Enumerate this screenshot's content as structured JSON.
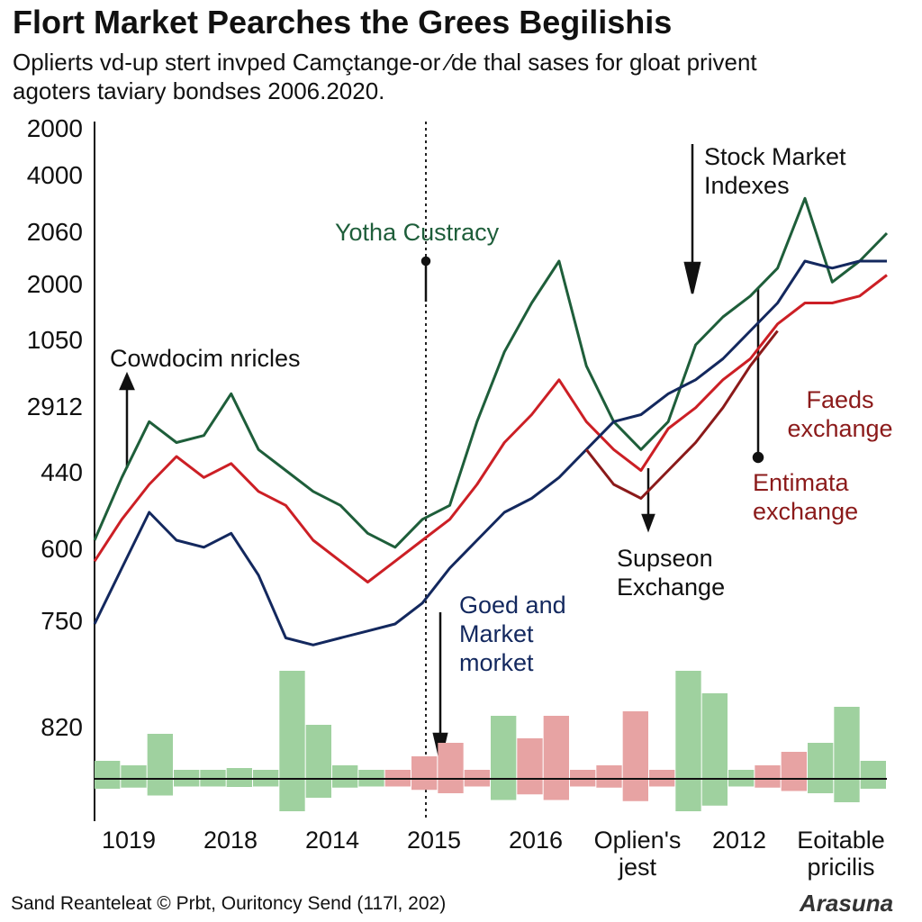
{
  "chart_data": {
    "type": "line",
    "title": "Flort Market Pearches the Grees Begilishis",
    "subtitle": [
      "Oplierts vd-up stert invped Camçtange-or ⁄de thal sases for gloat privent",
      "agoters taviary bondses 2006.2020."
    ],
    "y_labels": [
      "2000",
      "4000",
      "2060",
      "2000",
      "1050",
      "2912",
      "440",
      "600",
      "750",
      "820"
    ],
    "x_labels": [
      "1019",
      "2018",
      "2014",
      "2015",
      "2016",
      "Oplien's jest",
      "2012",
      "Eoitable pricilis"
    ],
    "ylim": [
      0,
      100
    ],
    "series": [
      {
        "color": "#1e5e3a",
        "values": [
          40,
          49,
          57,
          54,
          55,
          61,
          53,
          50,
          47,
          45,
          41,
          39,
          43,
          45,
          57,
          67,
          74,
          80,
          65,
          57,
          53,
          57,
          68,
          72,
          75,
          79,
          89,
          77,
          80,
          84
        ]
      },
      {
        "color": "#cc1f25",
        "values": [
          37,
          43,
          48,
          52,
          49,
          51,
          47,
          45,
          40,
          37,
          34,
          37,
          40,
          43,
          48,
          54,
          58,
          63,
          57,
          53,
          50,
          56,
          59,
          63,
          66,
          71,
          74,
          74,
          75,
          78
        ]
      },
      {
        "color": "#13285e",
        "values": [
          28,
          36,
          44,
          40,
          39,
          41,
          35,
          26,
          25,
          26,
          27,
          28,
          31,
          36,
          40,
          44,
          46,
          49,
          53,
          57,
          58,
          61,
          63,
          66,
          70,
          74,
          80,
          79,
          80,
          80
        ]
      },
      {
        "color": "#8b1a1a",
        "values": [
          null,
          null,
          null,
          null,
          null,
          null,
          null,
          null,
          null,
          null,
          null,
          null,
          null,
          null,
          null,
          null,
          null,
          null,
          53,
          48,
          46,
          50,
          54,
          59,
          65,
          70,
          null,
          null,
          null,
          null
        ]
      }
    ],
    "volume": {
      "ylim": [
        0,
        120
      ],
      "values": [
        20,
        15,
        50,
        10,
        10,
        12,
        10,
        120,
        60,
        15,
        10,
        10,
        25,
        40,
        10,
        70,
        45,
        70,
        10,
        15,
        75,
        10,
        120,
        95,
        10,
        15,
        30,
        40,
        80,
        20
      ],
      "colors": [
        "#9fd19f",
        "#9fd19f",
        "#9fd19f",
        "#9fd19f",
        "#9fd19f",
        "#9fd19f",
        "#9fd19f",
        "#9fd19f",
        "#9fd19f",
        "#9fd19f",
        "#9fd19f",
        "#e7a3a3",
        "#e7a3a3",
        "#e7a3a3",
        "#e7a3a3",
        "#9fd19f",
        "#e7a3a3",
        "#e7a3a3",
        "#e7a3a3",
        "#e7a3a3",
        "#e7a3a3",
        "#e7a3a3",
        "#9fd19f",
        "#9fd19f",
        "#9fd19f",
        "#e7a3a3",
        "#e7a3a3",
        "#9fd19f",
        "#9fd19f",
        "#9fd19f"
      ]
    },
    "annotations": [
      {
        "text": "Yotha Custracy",
        "color": "#1e5e3a"
      },
      {
        "text": "Cowdocim nricles",
        "color": "#111111"
      },
      {
        "text": "Stock Market Indexes",
        "color": "#111111"
      },
      {
        "text": "Faeds exchange",
        "color": "#8b1a1a"
      },
      {
        "text": "Entimata exchange",
        "color": "#8b1a1a"
      },
      {
        "text": "Supseon Exchange",
        "color": "#111111"
      },
      {
        "text": "Goed and Market morket",
        "color": "#13285e"
      }
    ],
    "footer": "Sand Reanteleat © Prbt, Ouritoncy Send (117l, 202)",
    "logo": "Arasuna"
  }
}
